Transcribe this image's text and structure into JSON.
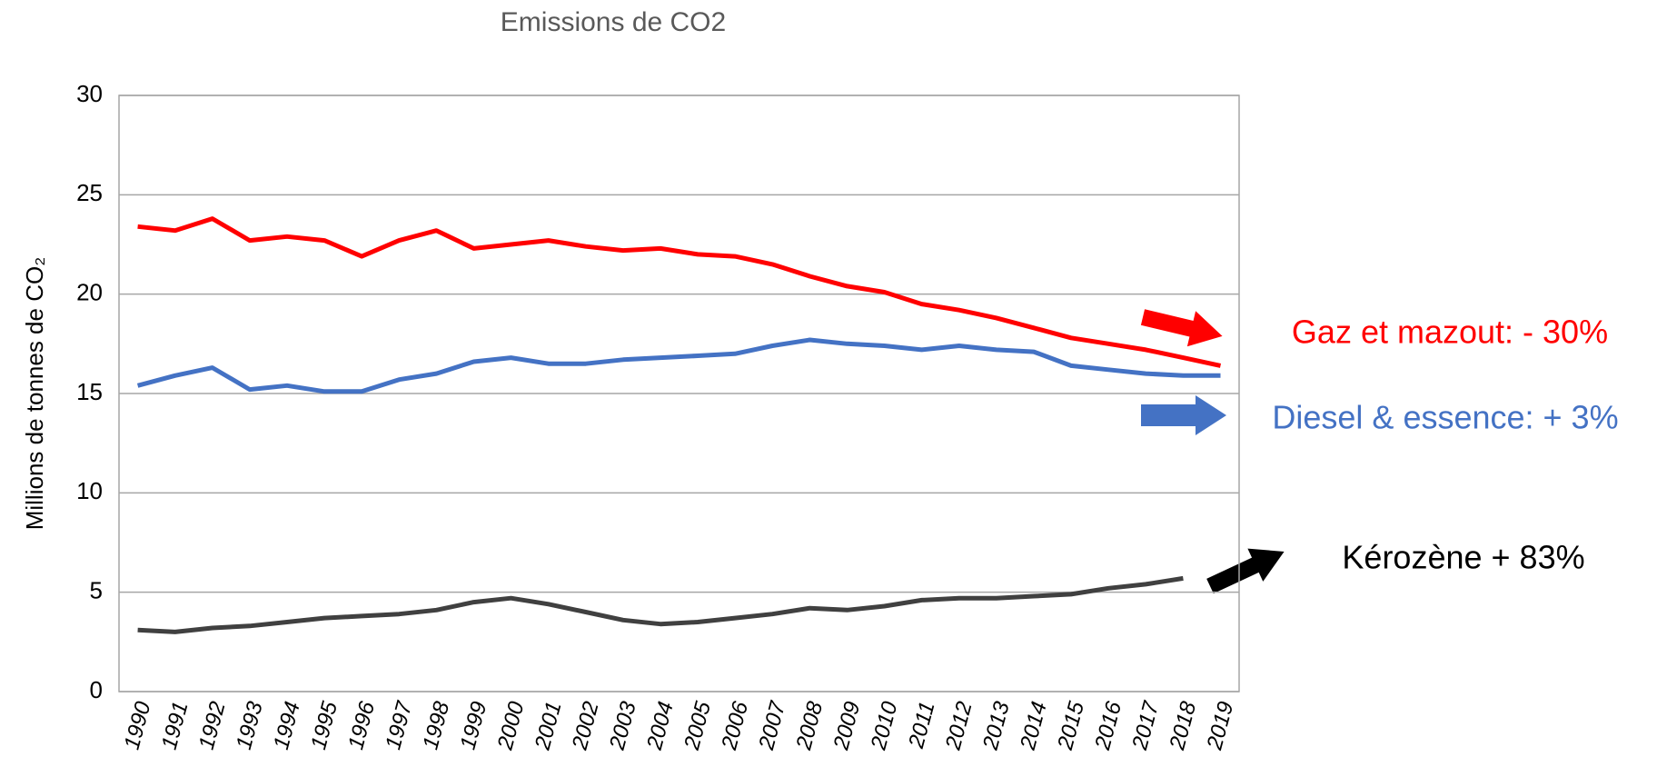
{
  "chart_data": {
    "type": "line",
    "title": "Emissions de CO2",
    "y_label": "Millions de tonnes de CO₂",
    "categories": [
      "1990",
      "1991",
      "1992",
      "1993",
      "1994",
      "1995",
      "1996",
      "1997",
      "1998",
      "1999",
      "2000",
      "2001",
      "2002",
      "2003",
      "2004",
      "2005",
      "2006",
      "2007",
      "2008",
      "2009",
      "2010",
      "2011",
      "2012",
      "2013",
      "2014",
      "2015",
      "2016",
      "2017",
      "2018",
      "2019"
    ],
    "series": [
      {
        "name": "Gaz et mazout",
        "color": "#ff0000",
        "values": [
          23.4,
          23.2,
          23.8,
          22.7,
          22.9,
          22.7,
          21.9,
          22.7,
          23.2,
          22.3,
          22.5,
          22.7,
          22.4,
          22.2,
          22.3,
          22.0,
          21.9,
          21.5,
          20.9,
          20.4,
          20.1,
          19.5,
          19.2,
          18.8,
          18.3,
          17.8,
          17.5,
          17.2,
          16.8,
          16.4
        ]
      },
      {
        "name": "Diesel & essence",
        "color": "#4472c4",
        "values": [
          15.4,
          15.9,
          16.3,
          15.2,
          15.4,
          15.1,
          15.1,
          15.7,
          16.0,
          16.6,
          16.8,
          16.5,
          16.5,
          16.7,
          16.8,
          16.9,
          17.0,
          17.4,
          17.7,
          17.5,
          17.4,
          17.2,
          17.4,
          17.2,
          17.1,
          16.4,
          16.2,
          16.0,
          15.9,
          15.9
        ]
      },
      {
        "name": "Kérozène",
        "color": "#404040",
        "values": [
          3.1,
          3.0,
          3.2,
          3.3,
          3.5,
          3.7,
          3.8,
          3.9,
          4.1,
          4.5,
          4.7,
          4.4,
          4.0,
          3.6,
          3.4,
          3.5,
          3.7,
          3.9,
          4.2,
          4.1,
          4.3,
          4.6,
          4.7,
          4.7,
          4.8,
          4.9,
          5.2,
          5.4,
          5.7,
          null
        ]
      }
    ],
    "annotations": [
      {
        "text": "Gaz et mazout: - 30%",
        "color": "#ff0000"
      },
      {
        "text": "Diesel & essence: + 3%",
        "color": "#4472c4"
      },
      {
        "text": "Kérozène + 83%",
        "color": "#000000"
      }
    ],
    "ylim": [
      0,
      30
    ],
    "yticks": [
      0,
      5,
      10,
      15,
      20,
      25,
      30
    ],
    "grid": true
  }
}
